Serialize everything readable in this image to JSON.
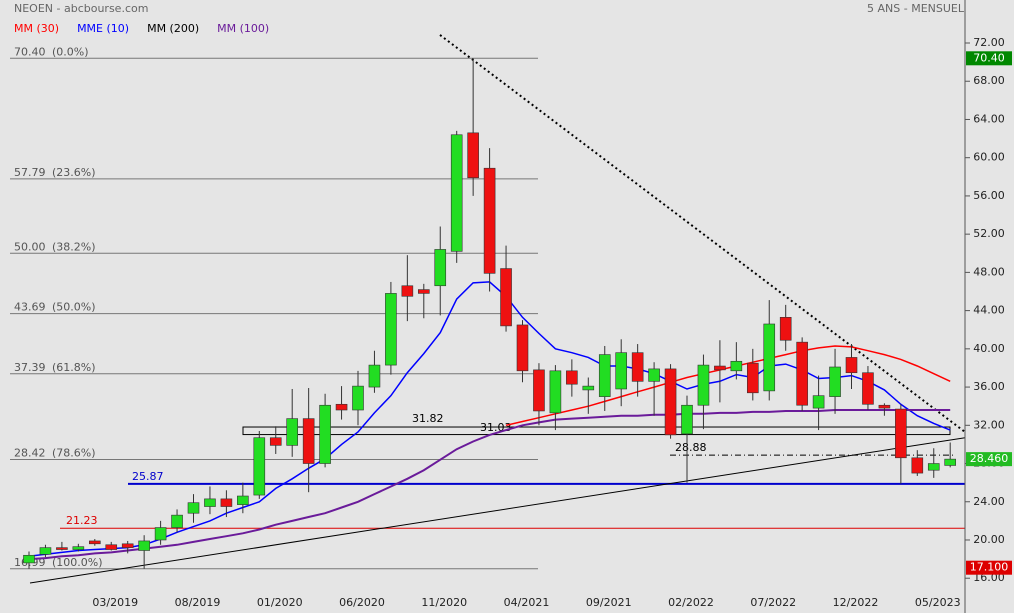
{
  "chart_data": {
    "type": "candlestick",
    "title": "NEOEN - abcbourse.com",
    "subtitle": "5 ANS - MENSUEL",
    "categories": [
      null,
      null,
      null,
      null,
      null,
      "03/2019",
      null,
      null,
      null,
      null,
      "08/2019",
      null,
      null,
      null,
      null,
      "01/2020",
      null,
      null,
      null,
      null,
      "06/2020",
      null,
      null,
      null,
      null,
      "11/2020",
      null,
      null,
      null,
      null,
      "04/2021",
      null,
      null,
      null,
      null,
      "09/2021",
      null,
      null,
      null,
      null,
      "02/2022",
      null,
      null,
      null,
      null,
      "07/2022",
      null,
      null,
      null,
      null,
      "12/2022",
      null,
      null,
      null,
      null,
      "05/2023",
      null
    ],
    "open": [
      17.6,
      18.5,
      19.2,
      19.0,
      19.9,
      19.5,
      19.6,
      18.9,
      20.0,
      21.3,
      22.8,
      23.5,
      24.3,
      23.7,
      24.7,
      30.7,
      29.9,
      32.7,
      28.0,
      34.2,
      33.6,
      36.0,
      38.3,
      46.6,
      46.2,
      46.6,
      50.2,
      62.6,
      58.9,
      48.4,
      42.5,
      37.8,
      33.3,
      37.7,
      35.7,
      35.0,
      35.8,
      39.6,
      36.6,
      37.9,
      31.1,
      34.1,
      38.2,
      37.7,
      38.5,
      35.6,
      43.3,
      40.7,
      33.8,
      35.0,
      39.1,
      37.5,
      34.1,
      33.7,
      28.6,
      27.3,
      27.8
    ],
    "high": [
      18.8,
      19.5,
      19.8,
      19.6,
      20.1,
      19.8,
      19.9,
      20.5,
      22.0,
      23.2,
      24.8,
      25.6,
      25.2,
      26.0,
      31.4,
      31.9,
      35.8,
      35.9,
      35.3,
      36.1,
      37.7,
      39.8,
      47.0,
      49.8,
      46.8,
      52.8,
      62.8,
      70.4,
      61.0,
      50.8,
      43.0,
      38.5,
      38.3,
      38.9,
      37.0,
      40.3,
      41.0,
      40.5,
      38.6,
      38.4,
      35.1,
      39.4,
      40.9,
      40.7,
      40.0,
      45.1,
      44.6,
      41.2,
      37.2,
      40.0,
      40.5,
      38.2,
      34.3,
      34.2,
      29.4,
      29.6,
      30.2
    ],
    "low": [
      16.99,
      18.2,
      18.9,
      18.8,
      19.4,
      18.9,
      18.6,
      17.0,
      19.5,
      20.8,
      21.8,
      22.7,
      22.4,
      22.8,
      24.3,
      29.0,
      28.7,
      25.0,
      27.6,
      32.6,
      32.0,
      35.4,
      37.3,
      42.9,
      43.2,
      43.5,
      49.0,
      56.0,
      46.0,
      41.8,
      36.5,
      32.0,
      31.5,
      35.0,
      33.2,
      33.5,
      34.0,
      35.0,
      33.0,
      30.6,
      26.0,
      31.6,
      34.4,
      36.8,
      34.6,
      34.6,
      39.8,
      33.5,
      31.5,
      33.2,
      35.8,
      33.6,
      33.0,
      25.9,
      26.7,
      26.5,
      27.6
    ],
    "close": [
      18.4,
      19.2,
      19.0,
      19.3,
      19.6,
      19.0,
      19.2,
      19.9,
      21.3,
      22.6,
      23.9,
      24.3,
      23.5,
      24.6,
      30.7,
      29.9,
      32.7,
      28.0,
      34.1,
      33.6,
      36.1,
      38.3,
      45.8,
      45.5,
      45.8,
      50.4,
      62.4,
      57.9,
      47.9,
      42.4,
      37.7,
      33.5,
      37.7,
      36.3,
      36.1,
      39.4,
      39.6,
      36.6,
      37.9,
      31.0,
      34.1,
      38.3,
      37.8,
      38.7,
      35.4,
      42.6,
      40.9,
      34.1,
      35.1,
      38.1,
      37.5,
      34.2,
      33.8,
      28.6,
      27.0,
      28.0,
      28.46
    ],
    "up_color": "#22dd22",
    "down_color": "#ee1111",
    "series": [
      {
        "name": "MM (30)",
        "color": "#ff0000",
        "values": [
          null,
          null,
          null,
          null,
          null,
          null,
          null,
          null,
          null,
          null,
          null,
          null,
          null,
          null,
          null,
          null,
          null,
          null,
          null,
          null,
          null,
          null,
          null,
          null,
          null,
          null,
          null,
          null,
          null,
          32.0,
          32.4,
          32.8,
          33.2,
          33.6,
          34.0,
          34.5,
          35.0,
          35.5,
          36.0,
          36.5,
          37.0,
          37.4,
          37.8,
          38.2,
          38.6,
          39.0,
          39.4,
          39.8,
          40.1,
          40.3,
          40.2,
          39.8,
          39.4,
          38.9,
          38.2,
          37.4,
          36.6
        ]
      },
      {
        "name": "MME (10)",
        "color": "#0000ff",
        "values": [
          18.3,
          18.5,
          18.7,
          18.9,
          19.0,
          19.1,
          19.2,
          19.5,
          20.1,
          20.8,
          21.4,
          22.0,
          22.8,
          23.4,
          24.0,
          25.4,
          26.4,
          27.5,
          28.5,
          30.0,
          31.3,
          33.3,
          35.1,
          37.5,
          39.5,
          41.7,
          45.2,
          46.9,
          47.0,
          45.5,
          43.3,
          41.6,
          40.0,
          39.6,
          39.1,
          38.2,
          38.2,
          37.9,
          37.4,
          36.6,
          35.8,
          36.3,
          36.6,
          37.3,
          37.0,
          38.2,
          38.4,
          37.8,
          36.9,
          37.0,
          37.2,
          36.6,
          35.7,
          34.2,
          33.0,
          32.2,
          31.5
        ]
      },
      {
        "name": "MM (200)",
        "color": "#000000",
        "values": [
          null,
          null,
          null,
          null,
          null,
          null,
          null,
          null,
          null,
          null,
          null,
          null,
          null,
          null,
          null,
          null,
          null,
          null,
          null,
          null,
          null,
          null,
          null,
          null,
          null,
          null,
          null,
          null,
          null,
          null,
          null,
          null,
          null,
          null,
          null,
          null,
          null,
          null,
          null,
          null,
          null,
          null,
          null,
          null,
          null,
          null,
          null,
          null,
          null,
          null,
          null,
          null,
          null,
          null,
          null,
          null,
          null
        ]
      },
      {
        "name": "MM (100)",
        "color": "#6a1b9a",
        "values": [
          18.0,
          18.1,
          18.3,
          18.4,
          18.6,
          18.7,
          18.9,
          19.1,
          19.3,
          19.5,
          19.8,
          20.1,
          20.4,
          20.7,
          21.1,
          21.6,
          22.0,
          22.4,
          22.8,
          23.4,
          24.0,
          24.8,
          25.6,
          26.4,
          27.3,
          28.4,
          29.5,
          30.3,
          31.0,
          31.5,
          32.0,
          32.3,
          32.6,
          32.7,
          32.8,
          32.9,
          33.0,
          33.0,
          33.1,
          33.1,
          33.2,
          33.2,
          33.3,
          33.3,
          33.4,
          33.4,
          33.5,
          33.5,
          33.5,
          33.6,
          33.6,
          33.6,
          33.6,
          33.6,
          33.6,
          33.6,
          33.6
        ]
      }
    ],
    "ylim": [
      12.36,
      76.5
    ],
    "yticks": [
      {
        "value": 16,
        "label": "16.00"
      },
      {
        "value": 20,
        "label": "20.00"
      },
      {
        "value": 24,
        "label": "24.00"
      },
      {
        "value": 28,
        "label": "28.00"
      },
      {
        "value": 32,
        "label": "32.00"
      },
      {
        "value": 36,
        "label": "36.00"
      },
      {
        "value": 40,
        "label": "40.00"
      },
      {
        "value": 44,
        "label": "44.00"
      },
      {
        "value": 48,
        "label": "48.00"
      },
      {
        "value": 52,
        "label": "52.00"
      },
      {
        "value": 56,
        "label": "56.00"
      },
      {
        "value": 60,
        "label": "60.00"
      },
      {
        "value": 64,
        "label": "64.00"
      },
      {
        "value": 68,
        "label": "68.00"
      },
      {
        "value": 72,
        "label": "72.00"
      }
    ],
    "fibonacci": [
      {
        "value": 70.4,
        "label": "70.40",
        "ratio": "(0.0%)"
      },
      {
        "value": 57.79,
        "label": "57.79",
        "ratio": "(23.6%)"
      },
      {
        "value": 50.0,
        "label": "50.00",
        "ratio": "(38.2%)"
      },
      {
        "value": 43.69,
        "label": "43.69",
        "ratio": "(50.0%)"
      },
      {
        "value": 37.39,
        "label": "37.39",
        "ratio": "(61.8%)"
      },
      {
        "value": 28.42,
        "label": "28.42",
        "ratio": "(78.6%)"
      },
      {
        "value": 16.99,
        "label": "16.99",
        "ratio": "(100.0%)"
      }
    ],
    "levels": [
      {
        "value": 25.87,
        "color": "#0000cc",
        "style": "solid"
      },
      {
        "value": 21.23,
        "color": "#dd0000",
        "style": "solid"
      },
      {
        "value": 28.88,
        "color": "#000000",
        "style": "dashdot"
      }
    ],
    "box": [
      31.82,
      31.03
    ],
    "trendlines": [
      {
        "style": "dotted",
        "values": [
          72.84,
          31.3
        ]
      },
      {
        "style": "solid",
        "values": [
          15.5,
          30.7
        ]
      }
    ],
    "price_tags": [
      {
        "value": 70.4,
        "label": "70.40",
        "color": "#008800"
      },
      {
        "value": 28.46,
        "label": "28.460",
        "color": "#22bb22"
      },
      {
        "value": 17.1,
        "label": "17.100",
        "color": "#dd0000"
      }
    ]
  }
}
